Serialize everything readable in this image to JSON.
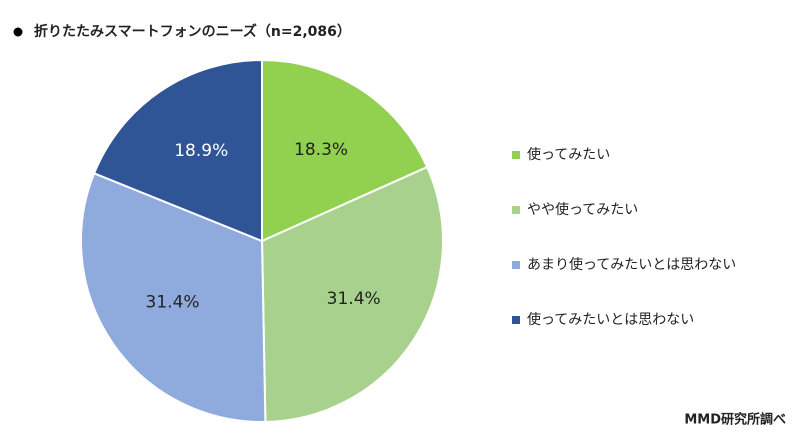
{
  "chart_data": {
    "type": "pie",
    "title": "折りたたみスマートフォンのニーズ（n=2,086）",
    "source": "MMD研究所調べ",
    "categories": [
      "使ってみたい",
      "やや使ってみたい",
      "あまり使ってみたいとは思わない",
      "使ってみたいとは思わない"
    ],
    "values": [
      18.3,
      31.4,
      31.4,
      18.9
    ],
    "value_labels": [
      "18.3%",
      "31.4%",
      "31.4%",
      "18.9%"
    ],
    "colors": [
      "#92d050",
      "#a9d18e",
      "#8faadc",
      "#2f5597"
    ],
    "legend": "right"
  }
}
